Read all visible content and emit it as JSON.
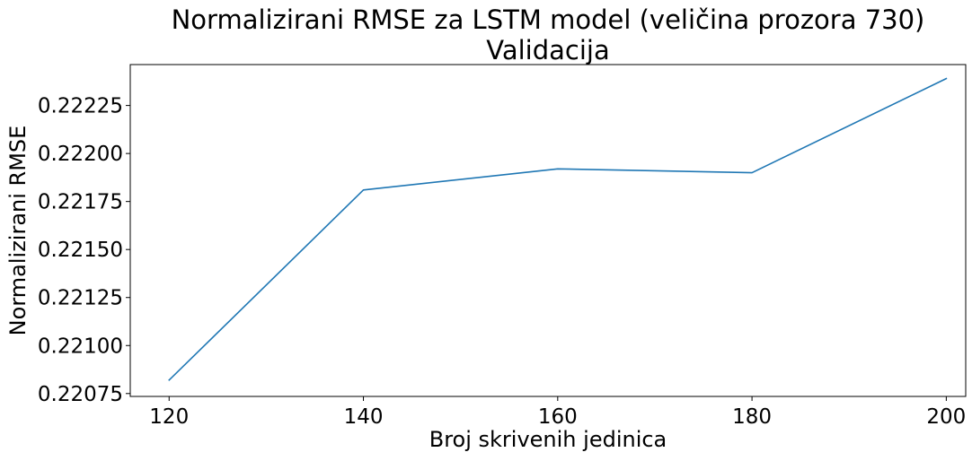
{
  "chart_data": {
    "type": "line",
    "title_lines": [
      "Normalizirani RMSE za LSTM model (veličina prozora 730)",
      "Validacija"
    ],
    "xlabel": "Broj skrivenih jedinica",
    "ylabel": "Normalizirani RMSE",
    "x": [
      120,
      140,
      160,
      180,
      200
    ],
    "series": [
      {
        "values": [
          0.22082,
          0.22181,
          0.22192,
          0.2219,
          0.22239
        ],
        "color": "#1f77b4"
      }
    ],
    "x_ticks": [
      120,
      140,
      160,
      180,
      200
    ],
    "x_tick_labels": [
      "120",
      "140",
      "160",
      "180",
      "200"
    ],
    "y_ticks": [
      0.22075,
      0.221,
      0.22125,
      0.2215,
      0.22175,
      0.222,
      0.22225
    ],
    "y_tick_labels": [
      "0.22075",
      "0.22100",
      "0.22125",
      "0.22150",
      "0.22175",
      "0.22200",
      "0.22225"
    ],
    "xlim": [
      116,
      202
    ],
    "ylim": [
      0.220735,
      0.222463
    ],
    "grid": false,
    "legend": false
  }
}
